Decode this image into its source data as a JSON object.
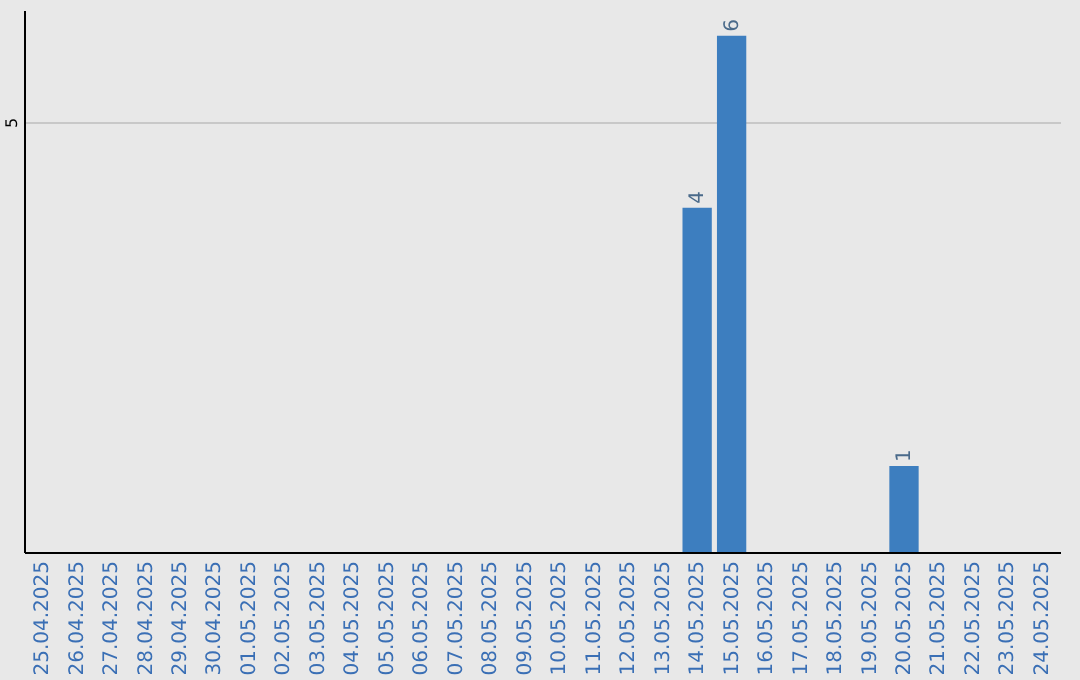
{
  "chart_data": {
    "type": "bar",
    "categories": [
      "25.04.2025",
      "26.04.2025",
      "27.04.2025",
      "28.04.2025",
      "29.04.2025",
      "30.04.2025",
      "01.05.2025",
      "02.05.2025",
      "03.05.2025",
      "04.05.2025",
      "05.05.2025",
      "06.05.2025",
      "07.05.2025",
      "08.05.2025",
      "09.05.2025",
      "10.05.2025",
      "11.05.2025",
      "12.05.2025",
      "13.05.2025",
      "14.05.2025",
      "15.05.2025",
      "16.05.2025",
      "17.05.2025",
      "18.05.2025",
      "19.05.2025",
      "20.05.2025",
      "21.05.2025",
      "22.05.2025",
      "23.05.2025",
      "24.05.2025"
    ],
    "values": [
      null,
      null,
      null,
      null,
      null,
      null,
      null,
      null,
      null,
      null,
      null,
      null,
      null,
      null,
      null,
      null,
      null,
      null,
      null,
      4,
      6,
      null,
      null,
      null,
      null,
      1,
      null,
      null,
      null,
      null
    ],
    "data_labels": true,
    "color": "#3d7ebf",
    "ylim": [
      0,
      6.3
    ],
    "yticks": [
      5
    ],
    "grid": "y",
    "legend": false
  }
}
